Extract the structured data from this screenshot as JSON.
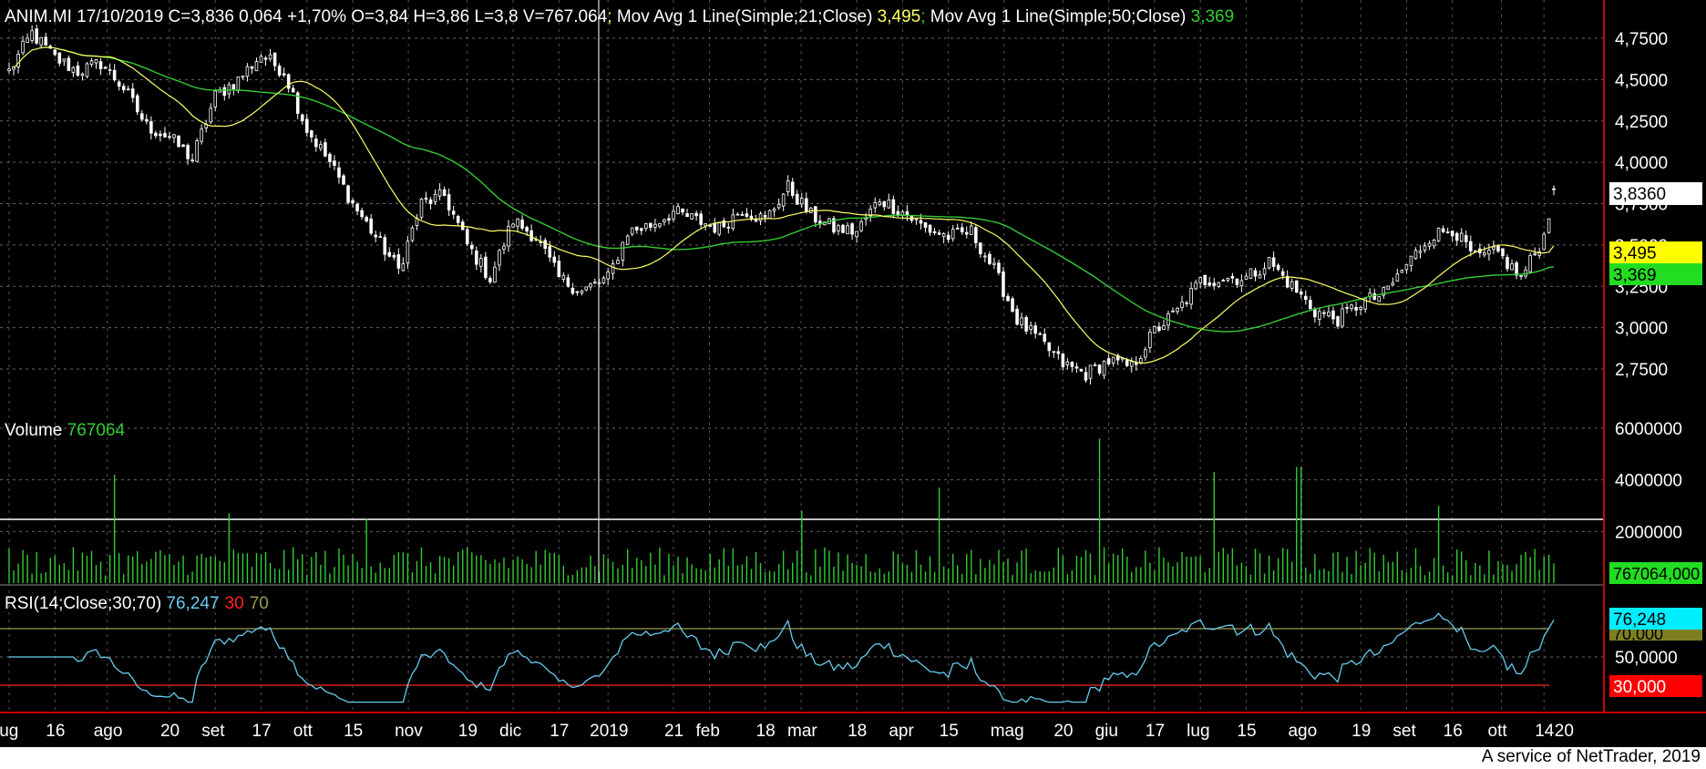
{
  "colors": {
    "background": "#000000",
    "candle": "#ffffff",
    "ma21": "#ffff66",
    "ma50": "#33cc33",
    "volume": "#33cc33",
    "rsi": "#66ccee",
    "rsi_low": "#ff2222",
    "rsi_high": "#999955",
    "grid": "#777777",
    "crosshair": "#dddddd",
    "right_border": "#cc0000"
  },
  "header": {
    "symbol_info": "ANIM.MI 17/10/2019 C=3,836 0,064 +1,70% O=3,84 H=3,86 L=3,8 V=767.064",
    "sep1": ";",
    "ma21_label": " Mov Avg 1 Line(Simple;21;Close) ",
    "ma21_value": "3,495",
    "sep2": ";",
    "ma50_label": " Mov Avg 1 Line(Simple;50;Close) ",
    "ma50_value": "3,369"
  },
  "volume_header": {
    "label": "Volume ",
    "value": "767064"
  },
  "rsi_header": {
    "label": "RSI(14;Close;30;70) ",
    "value": "76,247",
    "low": "30",
    "high": "70"
  },
  "badges": {
    "last_price": "3,8360",
    "ma21": "3,495",
    "ma50": "3,369",
    "volume": "767064,000",
    "rsi": "76,248",
    "rsi_high": "70,000",
    "rsi_low": "30,000"
  },
  "price_axis_labels": [
    "4,7500",
    "4,5000",
    "4,2500",
    "4,0000",
    "3,7500",
    "3,5000",
    "3,2500",
    "3,0000",
    "2,7500"
  ],
  "volume_axis_labels": [
    "6000000",
    "4000000",
    "2000000"
  ],
  "rsi_axis_labels": [
    "50,0000"
  ],
  "x_axis_labels": [
    "lug",
    "16",
    "ago",
    "20",
    "set",
    "17",
    "ott",
    "15",
    "nov",
    "19",
    "dic",
    "17",
    "2019",
    "21",
    "feb",
    "18",
    "mar",
    "18",
    "apr",
    "15",
    "mag",
    "20",
    "giu",
    "17",
    "lug",
    "15",
    "ago",
    "19",
    "set",
    "16",
    "ott",
    "14",
    "20"
  ],
  "footer": "A service of NetTrader, 2019",
  "chart_data": {
    "type": "candlestick",
    "title": "ANIM.MI",
    "period": "lug 2018 - ott 2019",
    "price_axis": {
      "ylim": [
        2.6,
        4.88
      ],
      "ticks": [
        4.75,
        4.5,
        4.25,
        4.0,
        3.75,
        3.5,
        3.25,
        3.0,
        2.75
      ]
    },
    "volume_axis": {
      "ylim": [
        0,
        6300000
      ],
      "ticks": [
        6000000,
        4000000,
        2000000
      ]
    },
    "rsi_axis": {
      "ylim": [
        18,
        92
      ],
      "levels": [
        30,
        70
      ],
      "ticks": [
        50
      ]
    },
    "x_ticks": [
      "lug",
      "16",
      "ago",
      "20",
      "set",
      "17",
      "ott",
      "15",
      "nov",
      "19",
      "dic",
      "17",
      "2019",
      "21",
      "feb",
      "18",
      "mar",
      "18",
      "apr",
      "15",
      "mag",
      "20",
      "giu",
      "17",
      "lug",
      "15",
      "ago",
      "19",
      "set",
      "16",
      "ott",
      "14",
      "20"
    ],
    "close_anchors": [
      {
        "date": "2018-07-02",
        "close": 4.55
      },
      {
        "date": "2018-07-09",
        "close": 4.78
      },
      {
        "date": "2018-07-16",
        "close": 4.63
      },
      {
        "date": "2018-07-23",
        "close": 4.55
      },
      {
        "date": "2018-07-30",
        "close": 4.6
      },
      {
        "date": "2018-08-06",
        "close": 4.45
      },
      {
        "date": "2018-08-13",
        "close": 4.22
      },
      {
        "date": "2018-08-20",
        "close": 4.15
      },
      {
        "date": "2018-08-27",
        "close": 4.02
      },
      {
        "date": "2018-09-03",
        "close": 4.4
      },
      {
        "date": "2018-09-10",
        "close": 4.5
      },
      {
        "date": "2018-09-17",
        "close": 4.65
      },
      {
        "date": "2018-09-24",
        "close": 4.55
      },
      {
        "date": "2018-10-01",
        "close": 4.2
      },
      {
        "date": "2018-10-08",
        "close": 4.0
      },
      {
        "date": "2018-10-15",
        "close": 3.75
      },
      {
        "date": "2018-10-22",
        "close": 3.55
      },
      {
        "date": "2018-10-29",
        "close": 3.35
      },
      {
        "date": "2018-11-05",
        "close": 3.75
      },
      {
        "date": "2018-11-12",
        "close": 3.8
      },
      {
        "date": "2018-11-19",
        "close": 3.5
      },
      {
        "date": "2018-11-26",
        "close": 3.3
      },
      {
        "date": "2018-12-03",
        "close": 3.65
      },
      {
        "date": "2018-12-10",
        "close": 3.55
      },
      {
        "date": "2018-12-17",
        "close": 3.3
      },
      {
        "date": "2018-12-24",
        "close": 3.22
      },
      {
        "date": "2019-01-01",
        "close": 3.3
      },
      {
        "date": "2019-01-07",
        "close": 3.58
      },
      {
        "date": "2019-01-14",
        "close": 3.62
      },
      {
        "date": "2019-01-21",
        "close": 3.7
      },
      {
        "date": "2019-01-28",
        "close": 3.65
      },
      {
        "date": "2019-02-04",
        "close": 3.6
      },
      {
        "date": "2019-02-11",
        "close": 3.72
      },
      {
        "date": "2019-02-18",
        "close": 3.65
      },
      {
        "date": "2019-02-25",
        "close": 3.85
      },
      {
        "date": "2019-03-04",
        "close": 3.68
      },
      {
        "date": "2019-03-11",
        "close": 3.6
      },
      {
        "date": "2019-03-18",
        "close": 3.58
      },
      {
        "date": "2019-03-25",
        "close": 3.78
      },
      {
        "date": "2019-04-01",
        "close": 3.7
      },
      {
        "date": "2019-04-08",
        "close": 3.6
      },
      {
        "date": "2019-04-15",
        "close": 3.55
      },
      {
        "date": "2019-04-22",
        "close": 3.58
      },
      {
        "date": "2019-04-29",
        "close": 3.35
      },
      {
        "date": "2019-05-06",
        "close": 3.05
      },
      {
        "date": "2019-05-13",
        "close": 2.92
      },
      {
        "date": "2019-05-20",
        "close": 2.78
      },
      {
        "date": "2019-05-27",
        "close": 2.72
      },
      {
        "date": "2019-06-03",
        "close": 2.8
      },
      {
        "date": "2019-06-10",
        "close": 2.76
      },
      {
        "date": "2019-06-17",
        "close": 2.98
      },
      {
        "date": "2019-06-24",
        "close": 3.1
      },
      {
        "date": "2019-07-01",
        "close": 3.28
      },
      {
        "date": "2019-07-08",
        "close": 3.3
      },
      {
        "date": "2019-07-15",
        "close": 3.3
      },
      {
        "date": "2019-07-22",
        "close": 3.4
      },
      {
        "date": "2019-07-29",
        "close": 3.25
      },
      {
        "date": "2019-08-05",
        "close": 3.1
      },
      {
        "date": "2019-08-12",
        "close": 3.05
      },
      {
        "date": "2019-08-19",
        "close": 3.15
      },
      {
        "date": "2019-08-26",
        "close": 3.2
      },
      {
        "date": "2019-09-02",
        "close": 3.38
      },
      {
        "date": "2019-09-09",
        "close": 3.55
      },
      {
        "date": "2019-09-16",
        "close": 3.6
      },
      {
        "date": "2019-09-23",
        "close": 3.42
      },
      {
        "date": "2019-09-30",
        "close": 3.45
      },
      {
        "date": "2019-10-07",
        "close": 3.3
      },
      {
        "date": "2019-10-14",
        "close": 3.55
      },
      {
        "date": "2019-10-17",
        "close": 3.836
      }
    ],
    "last": {
      "open": 3.84,
      "high": 3.86,
      "low": 3.8,
      "close": 3.836,
      "change": 0.064,
      "change_pct": 1.7,
      "volume": 767064
    },
    "ma21_last": 3.495,
    "ma50_last": 3.369,
    "rsi_last": 76.247,
    "volume_spikes": [
      {
        "date": "2018-08-03",
        "volume": 4200000
      },
      {
        "date": "2018-09-07",
        "volume": 2700000
      },
      {
        "date": "2018-10-19",
        "volume": 2500000
      },
      {
        "date": "2019-03-01",
        "volume": 2800000
      },
      {
        "date": "2019-04-12",
        "volume": 3700000
      },
      {
        "date": "2019-05-31",
        "volume": 5600000
      },
      {
        "date": "2019-07-05",
        "volume": 4300000
      },
      {
        "date": "2019-07-31",
        "volume": 4500000
      },
      {
        "date": "2019-09-12",
        "volume": 3000000
      },
      {
        "date": "2019-10-17",
        "volume": 767064
      }
    ]
  }
}
